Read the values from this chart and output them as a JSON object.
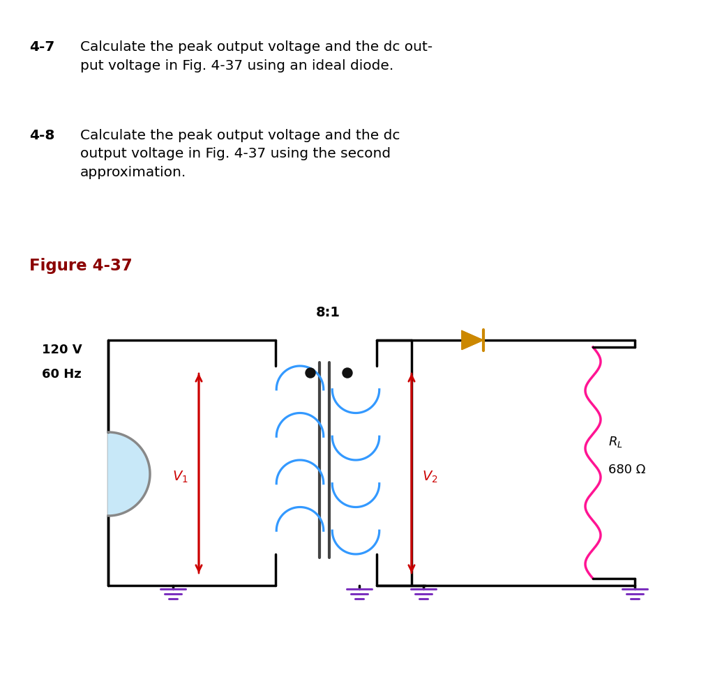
{
  "title_47": "4-7",
  "title_48": "4-8",
  "text_47": "Calculate the peak output voltage and the dc out-\nput voltage in Fig. 4-37 using an ideal diode.",
  "text_48": "Calculate the peak output voltage and the dc\noutput voltage in Fig. 4-37 using the second\napproximation.",
  "figure_label": "Figure 4-37",
  "ratio_label": "8:1",
  "source_label_v": "120 V",
  "source_label_hz": "60 Hz",
  "rl_value": "680 Ω",
  "colors": {
    "text_number": "#000000",
    "figure_title": "#8B0000",
    "wire": "#000000",
    "arrow_red": "#CC0000",
    "transformer_coil": "#3399FF",
    "transformer_core": "#444444",
    "diode": "#CC8800",
    "resistor": "#FF1493",
    "ground": "#7B2FBE",
    "source_fill": "#C8E8F8",
    "source_outline": "#888888",
    "dot": "#111111",
    "background": "#FFFFFF"
  }
}
